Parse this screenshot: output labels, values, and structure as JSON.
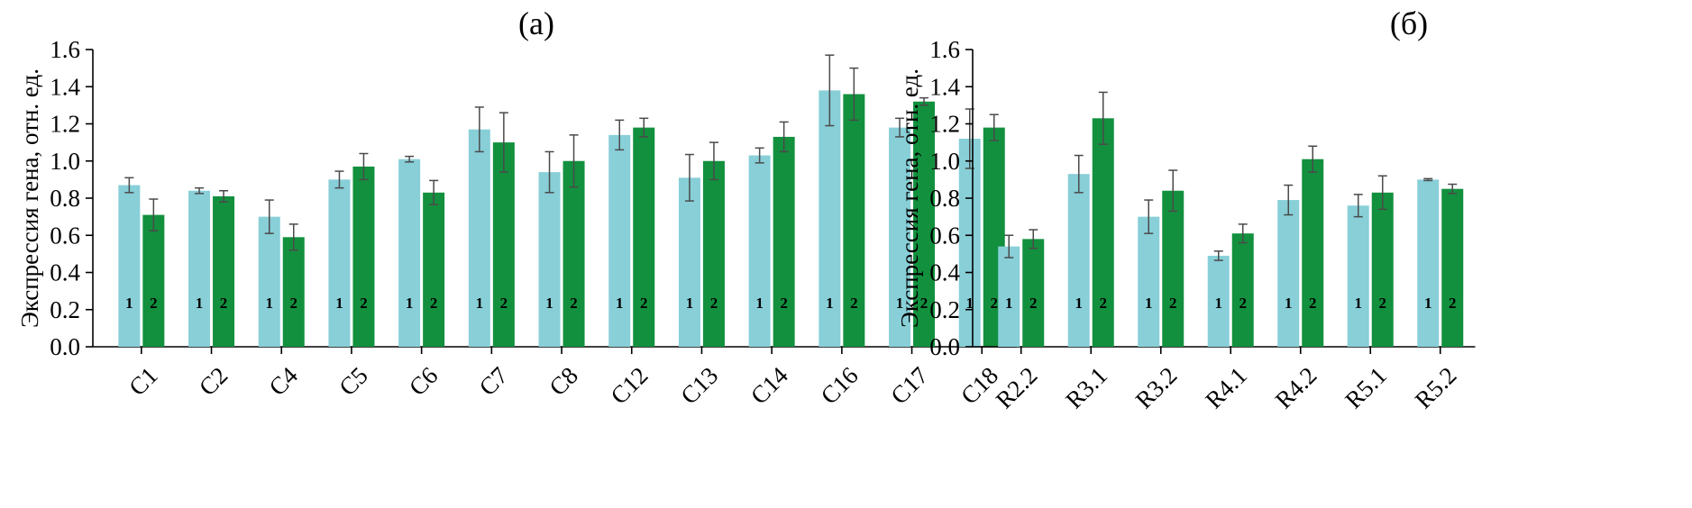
{
  "colors": {
    "series1": "#88CFD8",
    "series2": "#12903E"
  },
  "chart_data": [
    {
      "type": "bar",
      "title": "(а)",
      "ylabel": "Экспрессия гена, отн. ед.",
      "xlabel": "",
      "ylim": [
        0,
        1.6
      ],
      "yticks": [
        "0.0",
        "0.2",
        "0.4",
        "0.6",
        "0.8",
        "1.0",
        "1.2",
        "1.4",
        "1.6"
      ],
      "categories": [
        "C1",
        "C2",
        "C4",
        "C5",
        "C6",
        "C7",
        "C8",
        "C12",
        "C13",
        "C14",
        "C16",
        "C17",
        "C18"
      ],
      "series": [
        {
          "label": "1",
          "values": [
            0.87,
            0.84,
            0.7,
            0.9,
            1.01,
            1.17,
            0.94,
            1.14,
            0.91,
            1.03,
            1.38,
            1.18,
            1.12
          ],
          "errors": [
            0.04,
            0.015,
            0.09,
            0.045,
            0.015,
            0.12,
            0.11,
            0.08,
            0.125,
            0.04,
            0.19,
            0.05,
            0.16
          ]
        },
        {
          "label": "2",
          "values": [
            0.71,
            0.81,
            0.59,
            0.97,
            0.83,
            1.1,
            1.0,
            1.18,
            1.0,
            1.13,
            1.36,
            1.32,
            1.18
          ],
          "errors": [
            0.085,
            0.03,
            0.07,
            0.07,
            0.065,
            0.16,
            0.14,
            0.05,
            0.1,
            0.08,
            0.14,
            0.02,
            0.07
          ]
        }
      ]
    },
    {
      "type": "bar",
      "title": "(б)",
      "ylabel": "Экспрессия гена, отн. ед.",
      "xlabel": "",
      "ylim": [
        0,
        1.6
      ],
      "yticks": [
        "0.0",
        "0.2",
        "0.4",
        "0.6",
        "0.8",
        "1.0",
        "1.2",
        "1.4",
        "1.6"
      ],
      "categories": [
        "R2.2",
        "R3.1",
        "R3.2",
        "R4.1",
        "R4.2",
        "R5.1",
        "R5.2"
      ],
      "series": [
        {
          "label": "1",
          "values": [
            0.54,
            0.93,
            0.7,
            0.49,
            0.79,
            0.76,
            0.9
          ],
          "errors": [
            0.06,
            0.1,
            0.09,
            0.025,
            0.08,
            0.06,
            0.005
          ]
        },
        {
          "label": "2",
          "values": [
            0.58,
            1.23,
            0.84,
            0.61,
            1.01,
            0.83,
            0.85
          ],
          "errors": [
            0.05,
            0.14,
            0.11,
            0.05,
            0.07,
            0.09,
            0.025
          ]
        }
      ]
    }
  ]
}
